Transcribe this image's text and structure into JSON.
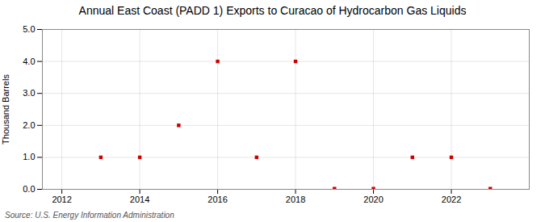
{
  "chart_data": {
    "type": "scatter",
    "title": "Annual East Coast (PADD 1) Exports to Curacao of Hydrocarbon Gas Liquids",
    "ylabel": "Thousand Barrels",
    "annotation": "Source: U.S. Energy Information Administration",
    "x": [
      2013,
      2014,
      2015,
      2016,
      2017,
      2018,
      2019,
      2020,
      2021,
      2022,
      2023
    ],
    "values": [
      1.0,
      1.0,
      2.0,
      4.0,
      1.0,
      4.0,
      0.02,
      0.02,
      1.0,
      1.0,
      0.02
    ],
    "xlim": [
      2011.5,
      2024.0
    ],
    "ylim": [
      0.0,
      5.0
    ],
    "xticks": [
      2012,
      2014,
      2016,
      2018,
      2020,
      2022
    ],
    "yticks": [
      {
        "value": 0.0,
        "label": "0.0"
      },
      {
        "value": 1.0,
        "label": "1.0"
      },
      {
        "value": 2.0,
        "label": "2.0"
      },
      {
        "value": 3.0,
        "label": "3.0"
      },
      {
        "value": 4.0,
        "label": "4.0"
      },
      {
        "value": 5.0,
        "label": "5.0"
      }
    ],
    "color": "#cc0000",
    "marker": "square",
    "grid": true
  }
}
